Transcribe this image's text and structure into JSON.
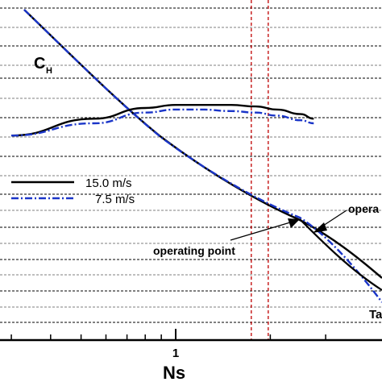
{
  "chart_data": {
    "type": "line",
    "xlabel": "Ns",
    "x_scale": "log",
    "x_ticks": [
      {
        "value": 1,
        "label": "1"
      }
    ],
    "grid": "horizontal dashed lines",
    "legend_position": "middle-left",
    "series": [
      {
        "name": "15.0 m/s",
        "color": "#000000",
        "style": "solid",
        "x": [
          0.3,
          0.55,
          0.8,
          1.0,
          1.2,
          1.5,
          1.8,
          2.1,
          2.5,
          2.75
        ],
        "y": [
          0.82,
          0.93,
          1.0,
          1.02,
          1.02,
          1.02,
          1.01,
          0.99,
          0.96,
          0.93
        ]
      },
      {
        "name": "7.5 m/s",
        "color": "#1a35c8",
        "style": "dashdot",
        "x": [
          0.3,
          0.55,
          0.8,
          1.0,
          1.2,
          1.5,
          1.8,
          2.1,
          2.5,
          2.75
        ],
        "y": [
          0.82,
          0.9,
          0.97,
          0.99,
          0.99,
          0.98,
          0.97,
          0.95,
          0.92,
          0.9
        ]
      }
    ],
    "annotations": [
      {
        "text": "C",
        "subscript": "H"
      },
      {
        "text": "operating point"
      },
      {
        "text": "opera"
      },
      {
        "text": "Ta"
      }
    ],
    "reference_lines": [
      {
        "x": 1.74,
        "color": "#c00000",
        "style": "dashed"
      },
      {
        "x": 1.97,
        "color": "#c00000",
        "style": "dashed"
      }
    ]
  }
}
